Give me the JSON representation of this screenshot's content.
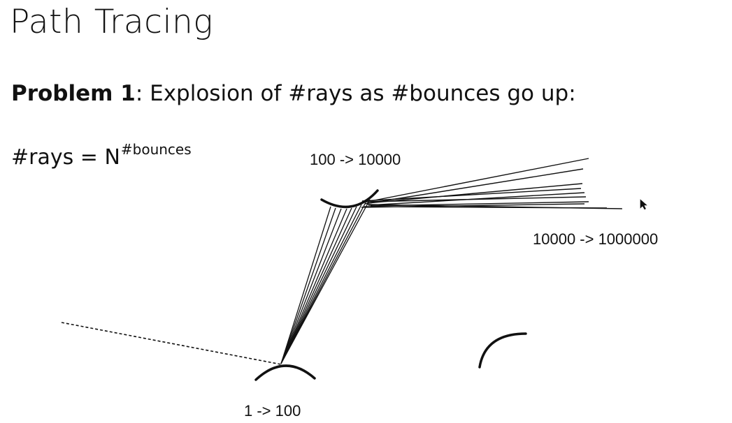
{
  "slide": {
    "title": "Path Tracing",
    "problem": {
      "bold": "Problem 1",
      "rest": ": Explosion of #rays as #bounces go up:"
    },
    "formula": {
      "base": "#rays = N",
      "exponent": "#bounces"
    }
  },
  "diagram": {
    "labels": {
      "bounce1": "1 -> 100",
      "bounce2": "100 -> 10000",
      "bounce3": "10000 -> 1000000"
    }
  }
}
